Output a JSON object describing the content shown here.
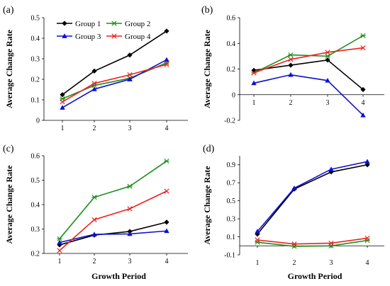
{
  "colors": {
    "Group 1": "#000000",
    "Group 2": "#1a8f1a",
    "Group 3": "#1010d0",
    "Group 4": "#ee2020"
  },
  "markers": {
    "Group 1": "diamond",
    "Group 2": "asterisk",
    "Group 3": "triangle",
    "Group 4": "x"
  },
  "legend_entries": [
    "Group 1",
    "Group 2",
    "Group 3",
    "Group 4"
  ],
  "chart_data": [
    {
      "type": "line",
      "panel_label": "(a)",
      "ylabel": "Average Change Rate",
      "xlabel": "",
      "x": [
        1,
        2,
        3,
        4
      ],
      "ylim": [
        0,
        0.5
      ],
      "yticks": [
        0,
        0.1,
        0.2,
        0.3,
        0.4,
        0.5
      ],
      "ytick_labels": [
        "0",
        "0.1",
        "0.2",
        "0.3",
        "0.4",
        "0.5"
      ],
      "xtick_labels": [
        "1",
        "2",
        "3",
        "4"
      ],
      "legend": "top-left",
      "series": [
        {
          "name": "Group 1",
          "values": [
            0.125,
            0.24,
            0.318,
            0.435
          ]
        },
        {
          "name": "Group 2",
          "values": [
            0.105,
            0.17,
            0.205,
            0.28
          ]
        },
        {
          "name": "Group 3",
          "values": [
            0.062,
            0.152,
            0.2,
            0.295
          ]
        },
        {
          "name": "Group 4",
          "values": [
            0.09,
            0.18,
            0.222,
            0.272
          ]
        }
      ]
    },
    {
      "type": "line",
      "panel_label": "(b)",
      "ylabel": "Average Change Rate",
      "xlabel": "",
      "x": [
        1,
        2,
        3,
        4
      ],
      "ylim": [
        -0.2,
        0.6
      ],
      "yticks": [
        -0.2,
        0,
        0.2,
        0.4,
        0.6
      ],
      "ytick_labels": [
        "-0.2",
        "0",
        "0.2",
        "0.4",
        "0.6"
      ],
      "xtick_labels": [
        "1",
        "2",
        "3",
        "4"
      ],
      "series": [
        {
          "name": "Group 1",
          "values": [
            0.19,
            0.23,
            0.27,
            0.04
          ]
        },
        {
          "name": "Group 2",
          "values": [
            0.17,
            0.31,
            0.3,
            0.46
          ]
        },
        {
          "name": "Group 3",
          "values": [
            0.09,
            0.155,
            0.11,
            -0.16
          ]
        },
        {
          "name": "Group 4",
          "values": [
            0.17,
            0.275,
            0.33,
            0.365
          ]
        }
      ]
    },
    {
      "type": "line",
      "panel_label": "(c)",
      "ylabel": "Average Change Rate",
      "xlabel": "Growth Period",
      "x": [
        1,
        2,
        3,
        4
      ],
      "ylim": [
        0.2,
        0.6
      ],
      "yticks": [
        0.2,
        0.3,
        0.4,
        0.5,
        0.6
      ],
      "ytick_labels": [
        "0.2",
        "0.3",
        "0.4",
        "0.5",
        "0.6"
      ],
      "xtick_labels": [
        "1",
        "2",
        "3",
        "4"
      ],
      "series": [
        {
          "name": "Group 1",
          "values": [
            0.235,
            0.275,
            0.29,
            0.328
          ]
        },
        {
          "name": "Group 2",
          "values": [
            0.26,
            0.43,
            0.475,
            0.578
          ]
        },
        {
          "name": "Group 3",
          "values": [
            0.245,
            0.278,
            0.28,
            0.292
          ]
        },
        {
          "name": "Group 4",
          "values": [
            0.212,
            0.338,
            0.383,
            0.455
          ]
        }
      ]
    },
    {
      "type": "line",
      "panel_label": "(d)",
      "ylabel": "Average Change Rate",
      "xlabel": "Growth Period",
      "x": [
        1,
        2,
        3,
        4
      ],
      "ylim": [
        -0.1,
        1.0
      ],
      "yticks": [
        -0.1,
        0.1,
        0.3,
        0.5,
        0.7,
        0.9
      ],
      "ytick_labels": [
        "-0.1",
        "0.1",
        "0.3",
        "0.5",
        "0.7",
        "0.9"
      ],
      "xtick_labels": [
        "1",
        "2",
        "3",
        "4"
      ],
      "series": [
        {
          "name": "Group 1",
          "values": [
            0.13,
            0.63,
            0.82,
            0.9
          ]
        },
        {
          "name": "Group 2",
          "values": [
            0.04,
            -0.005,
            0.0,
            0.06
          ]
        },
        {
          "name": "Group 3",
          "values": [
            0.16,
            0.64,
            0.85,
            0.935
          ]
        },
        {
          "name": "Group 4",
          "values": [
            0.065,
            0.02,
            0.03,
            0.085
          ]
        }
      ]
    }
  ]
}
